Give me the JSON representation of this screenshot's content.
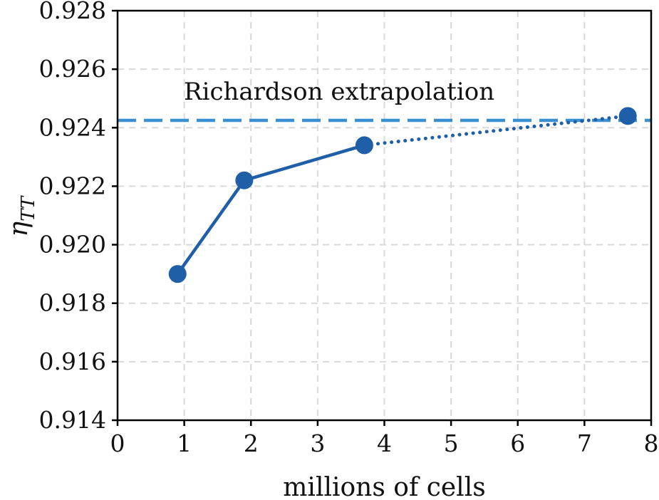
{
  "chart_data": {
    "type": "line",
    "xlabel": "millions of cells",
    "ylabel_main": "η",
    "ylabel_sub": "TT",
    "xlim": [
      0,
      8
    ],
    "ylim": [
      0.914,
      0.928
    ],
    "xticks": [
      "0",
      "1",
      "2",
      "3",
      "4",
      "5",
      "6",
      "7",
      "8"
    ],
    "yticks": [
      "0.914",
      "0.916",
      "0.918",
      "0.920",
      "0.922",
      "0.924",
      "0.926",
      "0.928"
    ],
    "grid": true,
    "series": [
      {
        "style": "solid",
        "color": "#1f5fa8",
        "points": [
          {
            "x": 0.9,
            "y": 0.919
          },
          {
            "x": 1.9,
            "y": 0.9222
          },
          {
            "x": 3.7,
            "y": 0.9234
          }
        ]
      },
      {
        "style": "dotted",
        "color": "#1f5fa8",
        "points": [
          {
            "x": 3.7,
            "y": 0.9234
          },
          {
            "x": 7.65,
            "y": 0.9244
          }
        ]
      }
    ],
    "reference_line": {
      "y": 0.92425,
      "style": "dashed",
      "color": "#3a8fd0",
      "label": "Richardson extrapolation"
    }
  }
}
